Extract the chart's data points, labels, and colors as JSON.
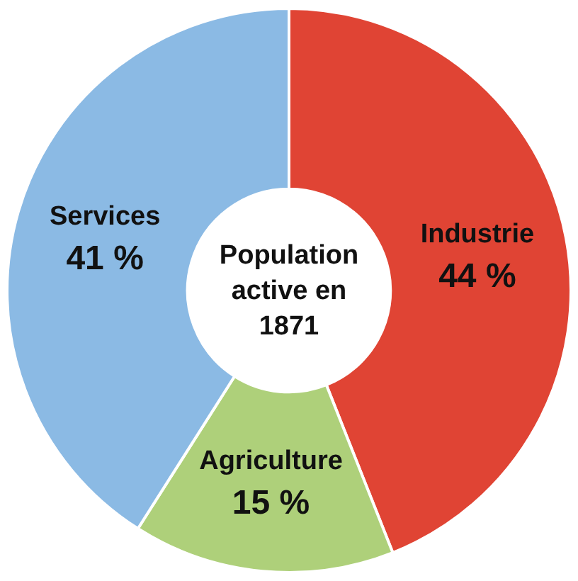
{
  "chart_data": {
    "type": "donut",
    "title": "Population active en 1871",
    "categories": [
      "Industrie",
      "Agriculture",
      "Services"
    ],
    "values": [
      44,
      15,
      41
    ],
    "colors": [
      "#e04434",
      "#aed07a",
      "#8bbae4"
    ],
    "value_labels": [
      "44 %",
      "15 %",
      "41 %"
    ]
  }
}
